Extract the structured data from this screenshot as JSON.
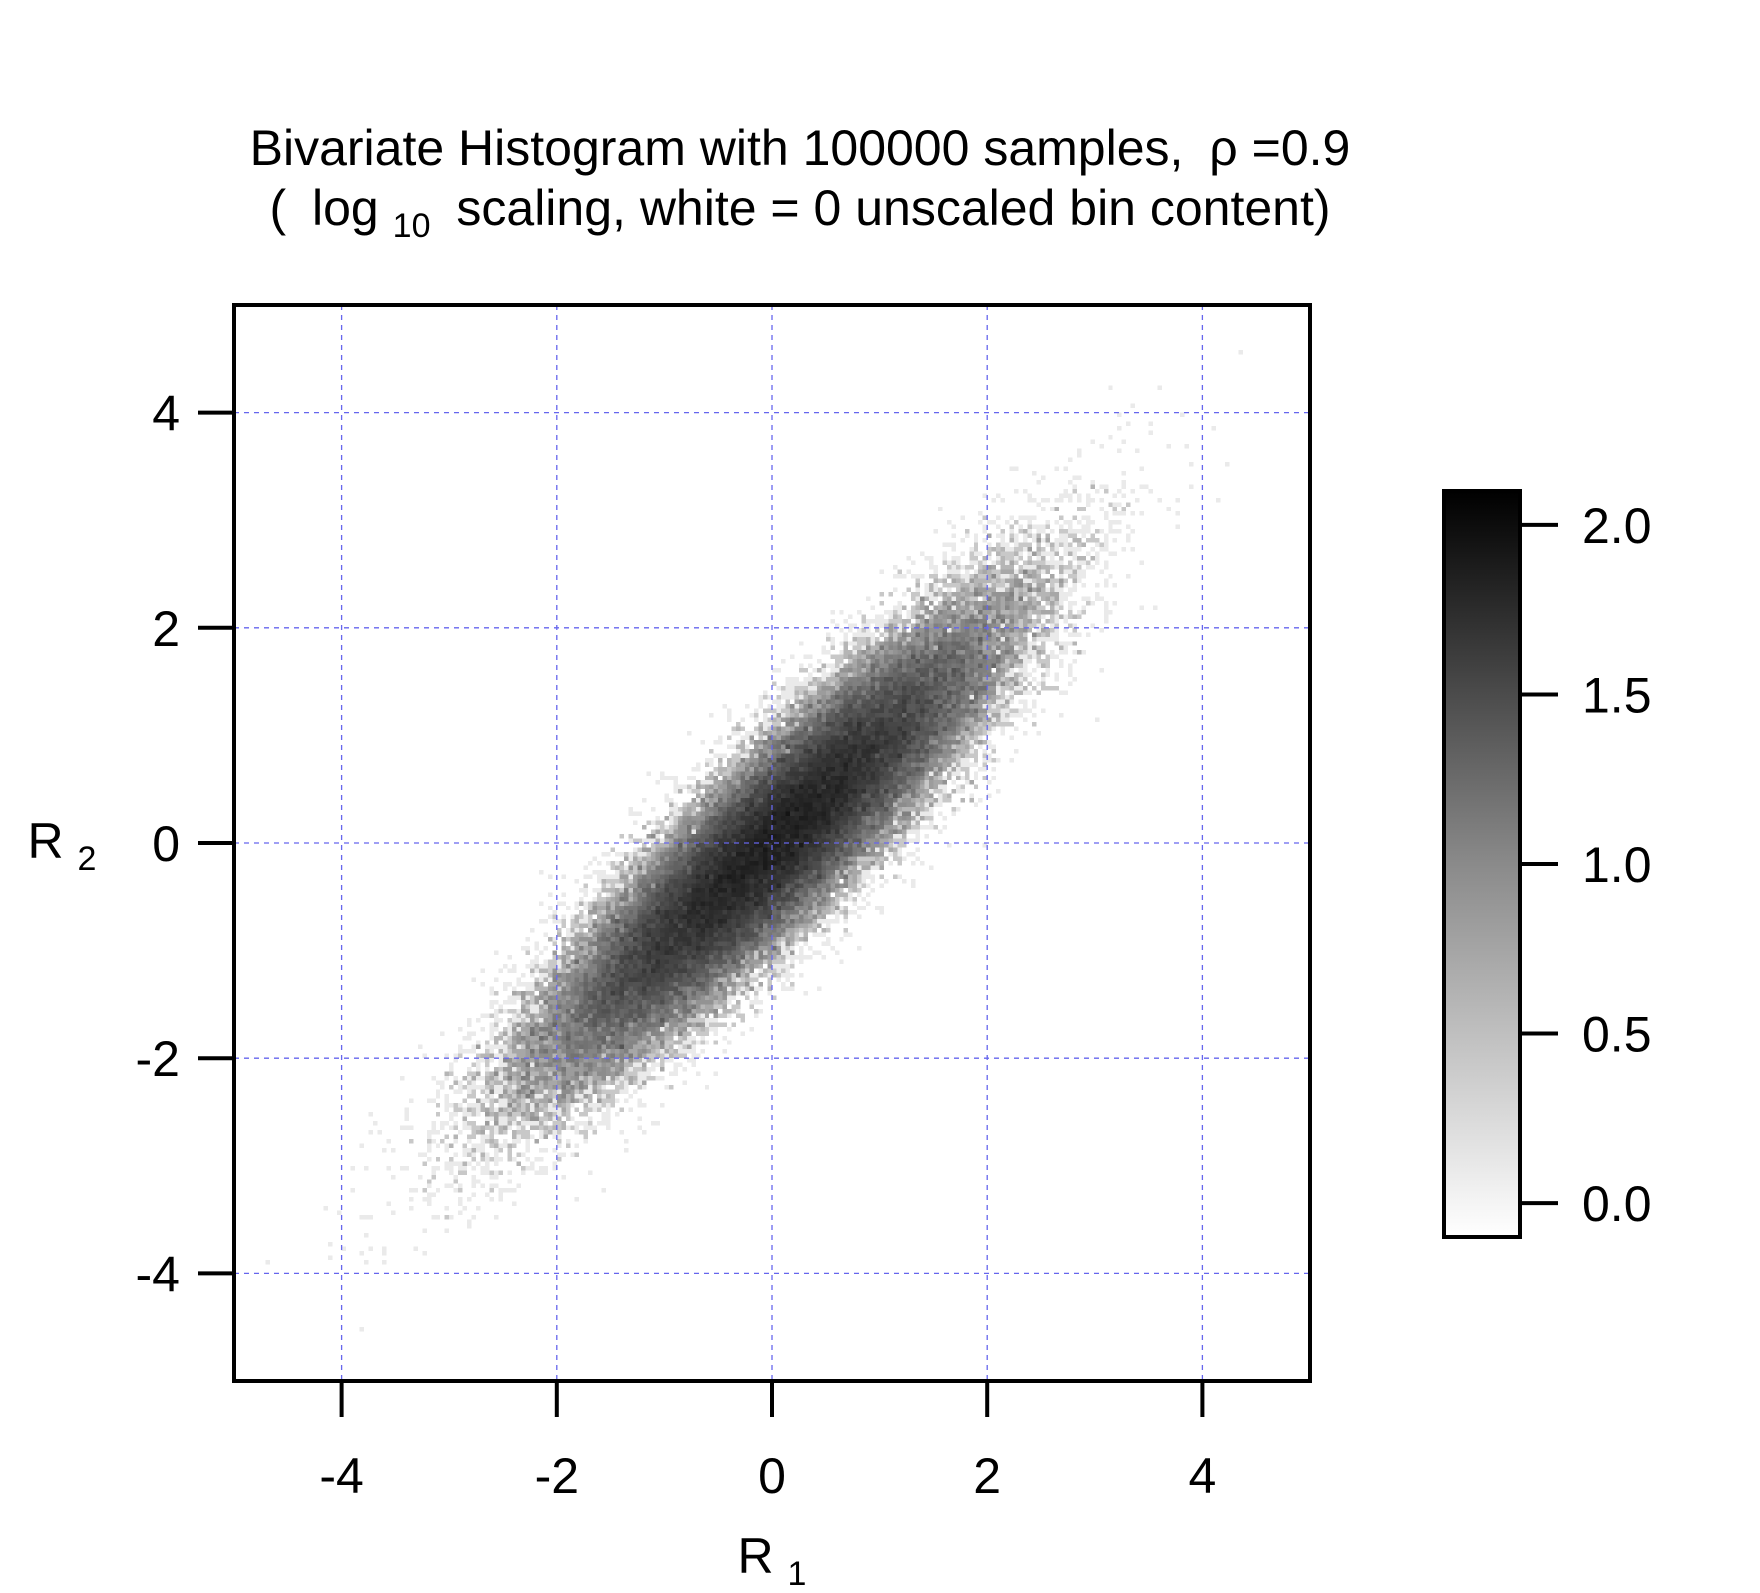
{
  "chart_data": {
    "type": "heatmap",
    "title": {
      "line1_prefix": "Bivariate Histogram with 100000 samples,",
      "line1_rho_symbol": "ρ",
      "line1_rho_value": "=0.9",
      "line2_open": "(",
      "line2_log": "log",
      "line2_log_sub": "10",
      "line2_rest": "scaling, white = 0 unscaled bin content)"
    },
    "xlabel": {
      "main": "R",
      "sub": "1"
    },
    "ylabel": {
      "main": "R",
      "sub": "2"
    },
    "samples": 100000,
    "rho": 0.9,
    "xlim": [
      -5,
      5
    ],
    "ylim": [
      -5,
      5
    ],
    "xticks": [
      -4,
      -2,
      0,
      2,
      4
    ],
    "yticks": [
      -4,
      -2,
      0,
      2,
      4
    ],
    "xtick_labels": [
      "-4",
      "-2",
      "0",
      "2",
      "4"
    ],
    "ytick_labels": [
      "-4",
      "-2",
      "0",
      "2",
      "4"
    ],
    "grid": true,
    "grid_color": "#6666ee",
    "colorbar": {
      "scale": "log10",
      "range": [
        -0.1,
        2.1
      ],
      "ticks": [
        0.0,
        0.5,
        1.0,
        1.5,
        2.0
      ],
      "tick_labels": [
        "0.0",
        "0.5",
        "1.0",
        "1.5",
        "2.0"
      ],
      "low_color": "#ffffff",
      "high_color": "#000000"
    }
  }
}
